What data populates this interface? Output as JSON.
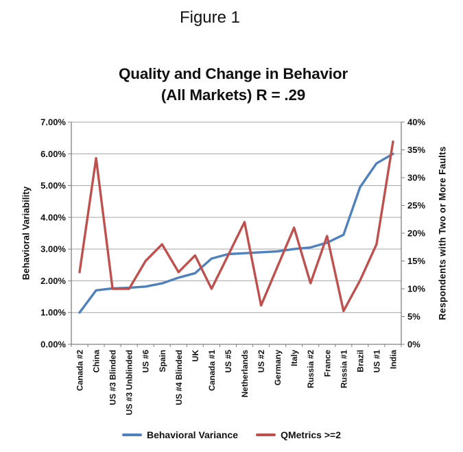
{
  "figure_label": "Figure 1",
  "chart_data": {
    "type": "line",
    "title_line1": "Quality and Change in Behavior",
    "title_line2": "(All Markets) R = .29",
    "grid": true,
    "legend_position": "bottom",
    "categories": [
      "Canada #2",
      "China",
      "US #3 Blinded",
      "US #3 Unblinded",
      "US #6",
      "Spain",
      "US #4 Blinded",
      "UK",
      "Canada #1",
      "US #5",
      "Netherlands",
      "US #2",
      "Germany",
      "Italy",
      "Russia #2",
      "France",
      "Russia #1",
      "Brazil",
      "US #1",
      "India"
    ],
    "series": [
      {
        "name": "Behavioral Variance",
        "axis": "left",
        "color": "#4e81bd",
        "values": [
          1.0,
          1.7,
          1.76,
          1.78,
          1.82,
          1.92,
          2.1,
          2.24,
          2.7,
          2.84,
          2.87,
          2.9,
          2.93,
          3.0,
          3.05,
          3.2,
          3.45,
          4.95,
          5.7,
          6.0
        ]
      },
      {
        "name": "QMetrics >=2",
        "axis": "right",
        "color": "#c0504d",
        "values": [
          13,
          33.5,
          10,
          10,
          15,
          18,
          13,
          16,
          10,
          16,
          22,
          7,
          14,
          21,
          11,
          19.5,
          6,
          11.5,
          18,
          36.5
        ]
      }
    ],
    "left_axis": {
      "label": "Behavioral Variability",
      "min": 0,
      "max": 7,
      "ticks": [
        "0.00%",
        "1.00%",
        "2.00%",
        "3.00%",
        "4.00%",
        "5.00%",
        "6.00%",
        "7.00%"
      ]
    },
    "right_axis": {
      "label": "Respondents with Two or More Faults",
      "min": 0,
      "max": 40,
      "ticks": [
        "0%",
        "5%",
        "10%",
        "15%",
        "20%",
        "25%",
        "30%",
        "35%",
        "40%"
      ]
    },
    "colors": {
      "grid": "#a3a3a3",
      "axis": "#808080",
      "text": "#111111"
    }
  }
}
